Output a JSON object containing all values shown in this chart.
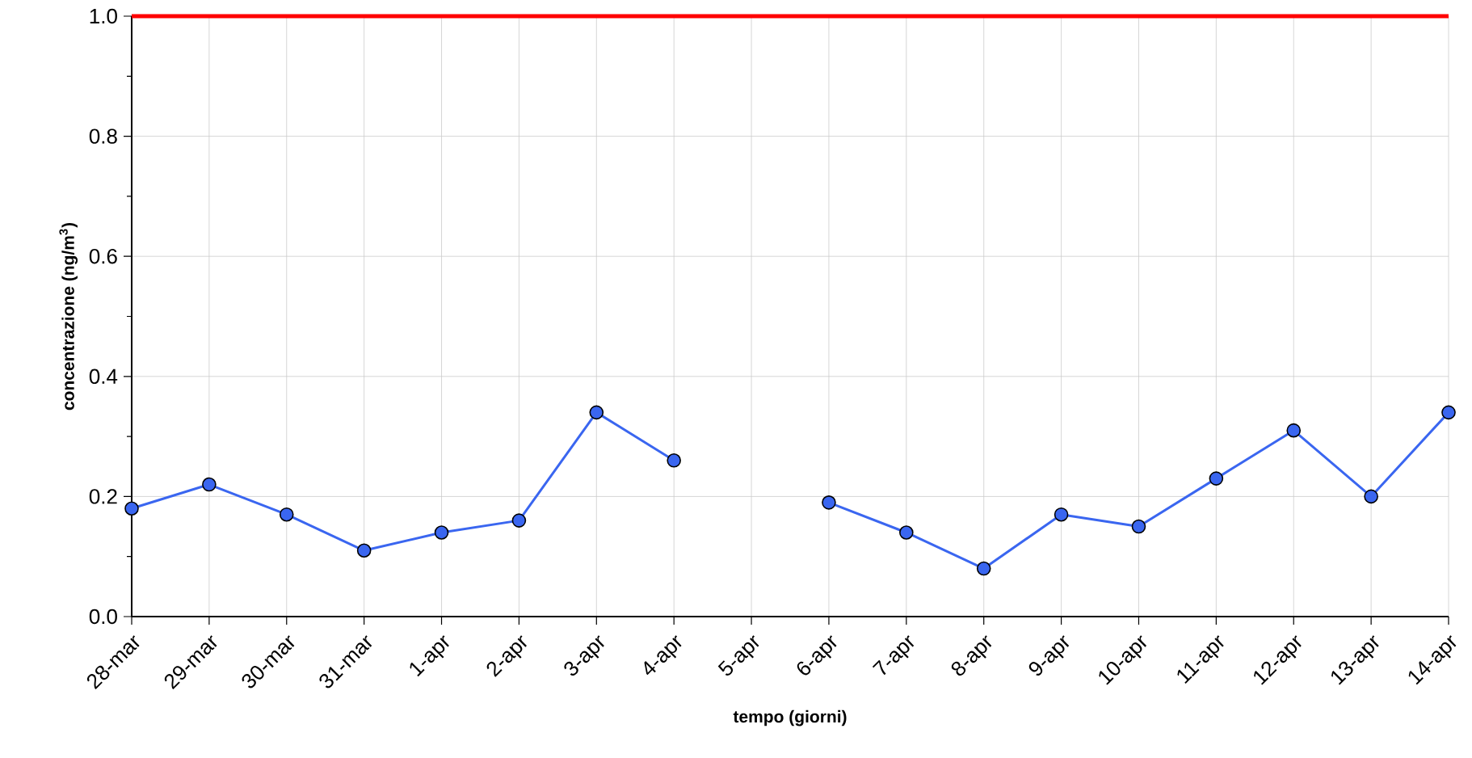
{
  "chart_data": {
    "type": "line",
    "xlabel": "tempo (giorni)",
    "ylabel": "concentrazione (ng/m$^{3}$)",
    "categories": [
      "28-mar",
      "29-mar",
      "30-mar",
      "31-mar",
      "1-apr",
      "2-apr",
      "3-apr",
      "4-apr",
      "5-apr",
      "6-apr",
      "7-apr",
      "8-apr",
      "9-apr",
      "10-apr",
      "11-apr",
      "12-apr",
      "13-apr",
      "14-apr"
    ],
    "series": [
      {
        "color": "#3a66f0",
        "values": [
          0.18,
          0.22,
          0.17,
          0.11,
          0.14,
          0.16,
          0.34,
          0.26,
          null,
          0.19,
          0.14,
          0.08,
          0.17,
          0.15,
          0.23,
          0.31,
          0.2,
          0.34
        ]
      }
    ],
    "ylim": [
      0,
      1
    ],
    "yticks": [
      {
        "value": 0,
        "label": "0.0"
      },
      {
        "value": 0.1,
        "label": null
      },
      {
        "value": 0.2,
        "label": "0.2"
      },
      {
        "value": 0.3,
        "label": null
      },
      {
        "value": 0.4,
        "label": "0.4"
      },
      {
        "value": 0.5,
        "label": null
      },
      {
        "value": 0.6,
        "label": "0.6"
      },
      {
        "value": 0.7,
        "label": null
      },
      {
        "value": 0.8,
        "label": "0.8"
      },
      {
        "value": 0.9,
        "label": null
      },
      {
        "value": 1.0,
        "label": "1.0"
      }
    ],
    "ref_lines": [
      {
        "axis": "y",
        "value": 1.0,
        "color": "#ff0000"
      }
    ],
    "grid": true,
    "marker": "circle",
    "line_style": "solid"
  }
}
